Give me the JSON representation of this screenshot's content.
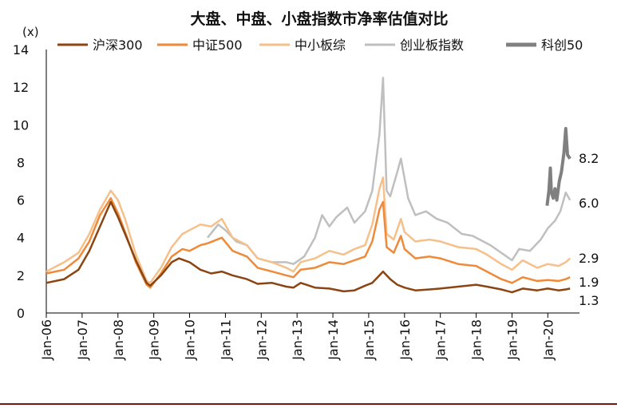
{
  "chart_data": {
    "type": "line",
    "title": "大盘、中盘、小盘指数市净率估值对比",
    "ylabel": "(x)",
    "xlabel": "",
    "ylim": [
      0,
      14
    ],
    "yticks": [
      0,
      2,
      4,
      6,
      8,
      10,
      12,
      14
    ],
    "xlim": [
      2006.0,
      2020.75
    ],
    "xtick_labels": [
      "Jan-06",
      "Jan-07",
      "Jan-08",
      "Jan-09",
      "Jan-10",
      "Jan-11",
      "Jan-12",
      "Jan-13",
      "Jan-14",
      "Jan-15",
      "Jan-16",
      "Jan-17",
      "Jan-18",
      "Jan-19",
      "Jan-20"
    ],
    "xtick_values": [
      2006,
      2007,
      2008,
      2009,
      2010,
      2011,
      2012,
      2013,
      2014,
      2015,
      2016,
      2017,
      2018,
      2019,
      2020
    ],
    "grid": false,
    "legend": "top",
    "series": [
      {
        "name": "沪深300",
        "color": "#8b4513",
        "end_label": "1.3",
        "points": [
          [
            2006.0,
            1.6
          ],
          [
            2006.5,
            1.8
          ],
          [
            2006.9,
            2.3
          ],
          [
            2007.2,
            3.3
          ],
          [
            2007.5,
            4.6
          ],
          [
            2007.8,
            5.9
          ],
          [
            2008.0,
            5.1
          ],
          [
            2008.2,
            4.2
          ],
          [
            2008.5,
            2.8
          ],
          [
            2008.8,
            1.6
          ],
          [
            2008.9,
            1.45
          ],
          [
            2009.2,
            2.0
          ],
          [
            2009.5,
            2.7
          ],
          [
            2009.7,
            2.9
          ],
          [
            2010.0,
            2.7
          ],
          [
            2010.3,
            2.3
          ],
          [
            2010.6,
            2.1
          ],
          [
            2010.9,
            2.2
          ],
          [
            2011.2,
            2.0
          ],
          [
            2011.6,
            1.8
          ],
          [
            2011.9,
            1.55
          ],
          [
            2012.3,
            1.6
          ],
          [
            2012.7,
            1.4
          ],
          [
            2012.9,
            1.35
          ],
          [
            2013.1,
            1.6
          ],
          [
            2013.5,
            1.35
          ],
          [
            2013.9,
            1.3
          ],
          [
            2014.3,
            1.15
          ],
          [
            2014.6,
            1.2
          ],
          [
            2014.9,
            1.45
          ],
          [
            2015.1,
            1.6
          ],
          [
            2015.3,
            2.0
          ],
          [
            2015.4,
            2.2
          ],
          [
            2015.6,
            1.8
          ],
          [
            2015.8,
            1.5
          ],
          [
            2016.0,
            1.35
          ],
          [
            2016.3,
            1.2
          ],
          [
            2016.7,
            1.25
          ],
          [
            2017.0,
            1.3
          ],
          [
            2017.5,
            1.4
          ],
          [
            2018.0,
            1.5
          ],
          [
            2018.3,
            1.4
          ],
          [
            2018.7,
            1.25
          ],
          [
            2019.0,
            1.1
          ],
          [
            2019.3,
            1.3
          ],
          [
            2019.7,
            1.2
          ],
          [
            2020.0,
            1.3
          ],
          [
            2020.3,
            1.2
          ],
          [
            2020.5,
            1.25
          ],
          [
            2020.62,
            1.3
          ]
        ]
      },
      {
        "name": "中证500",
        "color": "#ee8a3a",
        "end_label": "1.9",
        "points": [
          [
            2006.0,
            2.1
          ],
          [
            2006.5,
            2.3
          ],
          [
            2006.9,
            2.9
          ],
          [
            2007.2,
            3.8
          ],
          [
            2007.5,
            5.2
          ],
          [
            2007.8,
            6.1
          ],
          [
            2008.0,
            5.3
          ],
          [
            2008.2,
            4.3
          ],
          [
            2008.5,
            2.7
          ],
          [
            2008.8,
            1.5
          ],
          [
            2008.9,
            1.35
          ],
          [
            2009.2,
            2.1
          ],
          [
            2009.5,
            3.0
          ],
          [
            2009.8,
            3.4
          ],
          [
            2010.0,
            3.3
          ],
          [
            2010.3,
            3.6
          ],
          [
            2010.5,
            3.7
          ],
          [
            2010.9,
            4.0
          ],
          [
            2011.2,
            3.3
          ],
          [
            2011.6,
            3.0
          ],
          [
            2011.9,
            2.4
          ],
          [
            2012.3,
            2.2
          ],
          [
            2012.7,
            2.0
          ],
          [
            2012.9,
            1.9
          ],
          [
            2013.1,
            2.3
          ],
          [
            2013.5,
            2.4
          ],
          [
            2013.9,
            2.7
          ],
          [
            2014.3,
            2.6
          ],
          [
            2014.6,
            2.8
          ],
          [
            2014.9,
            3.0
          ],
          [
            2015.1,
            3.8
          ],
          [
            2015.3,
            5.5
          ],
          [
            2015.4,
            5.9
          ],
          [
            2015.5,
            3.5
          ],
          [
            2015.7,
            3.2
          ],
          [
            2015.9,
            4.1
          ],
          [
            2016.0,
            3.4
          ],
          [
            2016.3,
            2.9
          ],
          [
            2016.7,
            3.0
          ],
          [
            2017.0,
            2.9
          ],
          [
            2017.5,
            2.6
          ],
          [
            2018.0,
            2.5
          ],
          [
            2018.3,
            2.2
          ],
          [
            2018.7,
            1.8
          ],
          [
            2019.0,
            1.6
          ],
          [
            2019.3,
            1.9
          ],
          [
            2019.7,
            1.7
          ],
          [
            2020.0,
            1.75
          ],
          [
            2020.3,
            1.7
          ],
          [
            2020.5,
            1.8
          ],
          [
            2020.62,
            1.9
          ]
        ]
      },
      {
        "name": "中小板综",
        "color": "#f5c08a",
        "end_label": "2.9",
        "points": [
          [
            2006.0,
            2.2
          ],
          [
            2006.5,
            2.7
          ],
          [
            2006.9,
            3.2
          ],
          [
            2007.2,
            4.2
          ],
          [
            2007.5,
            5.5
          ],
          [
            2007.8,
            6.5
          ],
          [
            2008.0,
            6.0
          ],
          [
            2008.2,
            5.0
          ],
          [
            2008.5,
            3.1
          ],
          [
            2008.8,
            1.7
          ],
          [
            2008.9,
            1.6
          ],
          [
            2009.2,
            2.4
          ],
          [
            2009.5,
            3.5
          ],
          [
            2009.8,
            4.2
          ],
          [
            2010.0,
            4.4
          ],
          [
            2010.3,
            4.7
          ],
          [
            2010.6,
            4.6
          ],
          [
            2010.9,
            5.0
          ],
          [
            2011.2,
            4.0
          ],
          [
            2011.6,
            3.6
          ],
          [
            2011.9,
            2.9
          ],
          [
            2012.3,
            2.7
          ],
          [
            2012.7,
            2.4
          ],
          [
            2012.9,
            2.2
          ],
          [
            2013.1,
            2.7
          ],
          [
            2013.5,
            2.9
          ],
          [
            2013.9,
            3.3
          ],
          [
            2014.3,
            3.1
          ],
          [
            2014.6,
            3.4
          ],
          [
            2014.9,
            3.6
          ],
          [
            2015.1,
            4.7
          ],
          [
            2015.3,
            6.6
          ],
          [
            2015.4,
            7.2
          ],
          [
            2015.5,
            4.2
          ],
          [
            2015.7,
            3.9
          ],
          [
            2015.9,
            5.0
          ],
          [
            2016.0,
            4.3
          ],
          [
            2016.3,
            3.8
          ],
          [
            2016.7,
            3.9
          ],
          [
            2017.0,
            3.8
          ],
          [
            2017.5,
            3.5
          ],
          [
            2018.0,
            3.4
          ],
          [
            2018.3,
            3.1
          ],
          [
            2018.7,
            2.6
          ],
          [
            2019.0,
            2.3
          ],
          [
            2019.3,
            2.8
          ],
          [
            2019.7,
            2.4
          ],
          [
            2020.0,
            2.6
          ],
          [
            2020.3,
            2.5
          ],
          [
            2020.5,
            2.7
          ],
          [
            2020.62,
            2.9
          ]
        ]
      },
      {
        "name": "创业板指数",
        "color": "#bfbfbf",
        "end_label": "6.0",
        "points": [
          [
            2010.5,
            4.0
          ],
          [
            2010.8,
            4.7
          ],
          [
            2011.0,
            4.4
          ],
          [
            2011.3,
            3.8
          ],
          [
            2011.6,
            3.6
          ],
          [
            2011.9,
            2.9
          ],
          [
            2012.3,
            2.7
          ],
          [
            2012.7,
            2.7
          ],
          [
            2012.9,
            2.6
          ],
          [
            2013.2,
            3.0
          ],
          [
            2013.5,
            4.0
          ],
          [
            2013.7,
            5.2
          ],
          [
            2013.9,
            4.6
          ],
          [
            2014.1,
            5.1
          ],
          [
            2014.4,
            5.6
          ],
          [
            2014.6,
            4.8
          ],
          [
            2014.9,
            5.4
          ],
          [
            2015.1,
            6.5
          ],
          [
            2015.3,
            9.5
          ],
          [
            2015.4,
            12.5
          ],
          [
            2015.5,
            6.5
          ],
          [
            2015.6,
            6.2
          ],
          [
            2015.8,
            7.5
          ],
          [
            2015.9,
            8.2
          ],
          [
            2016.1,
            6.1
          ],
          [
            2016.3,
            5.2
          ],
          [
            2016.6,
            5.4
          ],
          [
            2016.9,
            5.0
          ],
          [
            2017.2,
            4.8
          ],
          [
            2017.6,
            4.2
          ],
          [
            2017.9,
            4.1
          ],
          [
            2018.1,
            3.9
          ],
          [
            2018.4,
            3.6
          ],
          [
            2018.7,
            3.2
          ],
          [
            2019.0,
            2.8
          ],
          [
            2019.2,
            3.4
          ],
          [
            2019.5,
            3.3
          ],
          [
            2019.8,
            3.9
          ],
          [
            2020.0,
            4.5
          ],
          [
            2020.2,
            4.9
          ],
          [
            2020.35,
            5.4
          ],
          [
            2020.5,
            6.4
          ],
          [
            2020.62,
            6.0
          ]
        ]
      },
      {
        "name": "科创50",
        "color": "#808080",
        "end_label": "8.2",
        "points": [
          [
            2019.98,
            5.7
          ],
          [
            2020.03,
            6.5
          ],
          [
            2020.07,
            7.7
          ],
          [
            2020.1,
            6.4
          ],
          [
            2020.15,
            6.1
          ],
          [
            2020.2,
            6.6
          ],
          [
            2020.25,
            6.0
          ],
          [
            2020.32,
            7.0
          ],
          [
            2020.38,
            7.5
          ],
          [
            2020.45,
            8.5
          ],
          [
            2020.5,
            9.8
          ],
          [
            2020.55,
            8.4
          ],
          [
            2020.62,
            8.2
          ]
        ]
      }
    ]
  }
}
